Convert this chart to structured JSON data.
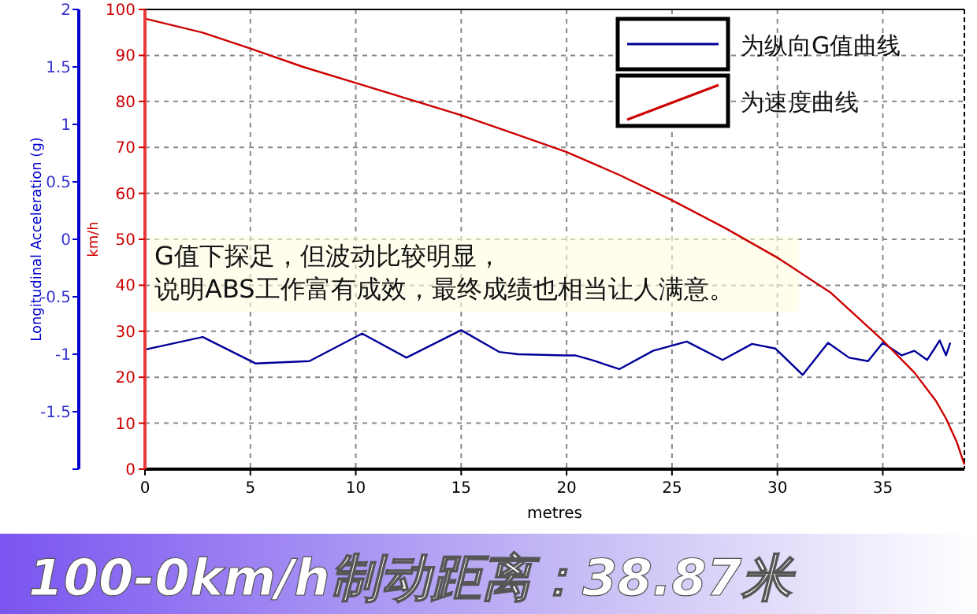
{
  "chart_data": {
    "type": "line",
    "title": "100-0km/h制动距离：38.87米",
    "xlabel": "metres",
    "ylabel": "km/h",
    "y2label": "Longitudinal Acceleration (g)",
    "annotations": [
      "G值下探足，但波动比较明显，",
      "说明ABS工作富有成效，最终成绩也相当让人满意。"
    ],
    "series": [
      {
        "name": "为纵向G值曲线",
        "color": "#000099",
        "axis": "y2",
        "x": [
          0,
          2.74,
          5.24,
          7.8,
          10.3,
          12.4,
          15.0,
          16.8,
          17.7,
          19.9,
          20.4,
          21.2,
          22.5,
          24.1,
          25.7,
          27.4,
          28.8,
          29.9,
          31.2,
          32.4,
          33.4,
          34.3,
          35.0,
          35.9,
          36.5,
          37.1,
          37.7,
          38.0,
          38.2
        ],
        "values": [
          -0.96,
          -0.85,
          -1.08,
          -1.06,
          -0.82,
          -1.03,
          -0.79,
          -0.98,
          -1.0,
          -1.01,
          -1.01,
          -1.05,
          -1.13,
          -0.97,
          -0.89,
          -1.05,
          -0.91,
          -0.95,
          -1.18,
          -0.9,
          -1.03,
          -1.06,
          -0.9,
          -1.01,
          -0.97,
          -1.05,
          -0.88,
          -1.01,
          -0.9
        ]
      },
      {
        "name": "为速度曲线",
        "color": "#cc0000",
        "x": [
          0,
          2.7,
          5,
          7.5,
          10,
          12.5,
          15,
          17.5,
          20,
          22.5,
          25,
          27.5,
          30,
          32.5,
          35,
          36.5,
          37.5,
          38,
          38.5,
          38.87
        ],
        "values": [
          98,
          95,
          91.5,
          87.5,
          84,
          80.5,
          77,
          73,
          69,
          64,
          58.5,
          52.5,
          46,
          38.5,
          28,
          21,
          15,
          11,
          6,
          1
        ]
      }
    ],
    "xlim": [
      0,
      38.87
    ],
    "xticks": [
      0,
      5,
      10,
      15,
      20,
      25,
      30,
      35
    ],
    "ylim": [
      0,
      100
    ],
    "yticks": [
      0,
      10,
      20,
      30,
      40,
      50,
      60,
      70,
      80,
      90,
      100
    ],
    "y2lim": [
      -2,
      2
    ],
    "y2ticks": [
      {
        "value": -2,
        "label": null
      },
      -1.5,
      -1,
      -0.5,
      0,
      0.5,
      1,
      1.5,
      2
    ],
    "grid": true,
    "legend": "top right",
    "line_style": "solid",
    "marker": "none"
  }
}
